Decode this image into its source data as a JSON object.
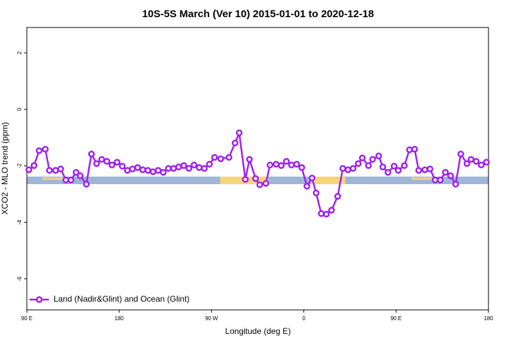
{
  "chart_data": {
    "type": "line",
    "title": "10S-5S March (Ver 10)   2015-01-01 to 2020-12-18",
    "x_label": "Longitude (deg E)",
    "y_label": "XCO2 - MLO trend (ppm)",
    "xlim": [
      90,
      540
    ],
    "ylim": [
      -7.1,
      2.9
    ],
    "xticks": [
      {
        "value": 90,
        "label": "90 E"
      },
      {
        "value": 180,
        "label": "180"
      },
      {
        "value": 270,
        "label": "90 W"
      },
      {
        "value": 360,
        "label": "0"
      },
      {
        "value": 450,
        "label": "90 E"
      },
      {
        "value": 540,
        "label": "180"
      }
    ],
    "yticks": [
      2,
      0,
      -2,
      -4,
      -6
    ],
    "legend": "bottom-left",
    "series": [
      {
        "name": "Land (Nadir&Glint) and Ocean (Glint)",
        "color": "#a020f0",
        "x": [
          92,
          97,
          102,
          108,
          112,
          118,
          123,
          128,
          133,
          138,
          142,
          148,
          153,
          158,
          163,
          168,
          173,
          178,
          183,
          188,
          193,
          198,
          203,
          208,
          213,
          218,
          223,
          228,
          233,
          238,
          243,
          248,
          253,
          258,
          263,
          268,
          273,
          279,
          287,
          293,
          297,
          303,
          307,
          313,
          317,
          323,
          327,
          333,
          338,
          343,
          348,
          353,
          358,
          363,
          368,
          372,
          377,
          382,
          387,
          393,
          398,
          403,
          408,
          413,
          417,
          423,
          427,
          433,
          437,
          442,
          448,
          452,
          458,
          463,
          468,
          472,
          478,
          483,
          488,
          493,
          498,
          503,
          508,
          513,
          519,
          523,
          528,
          533,
          538
        ],
        "values": [
          -2.14,
          -1.99,
          -1.46,
          -1.41,
          -2.16,
          -2.16,
          -2.11,
          -2.5,
          -2.5,
          -2.23,
          -2.35,
          -2.65,
          -1.58,
          -1.92,
          -1.77,
          -1.84,
          -1.97,
          -1.87,
          -2.01,
          -2.16,
          -2.11,
          -2.06,
          -2.14,
          -2.16,
          -2.21,
          -2.16,
          -2.23,
          -2.09,
          -2.09,
          -2.04,
          -1.99,
          -2.09,
          -1.97,
          -2.06,
          -2.09,
          -1.94,
          -1.7,
          -1.75,
          -1.7,
          -1.19,
          -0.83,
          -2.48,
          -1.77,
          -2.45,
          -2.67,
          -2.62,
          -1.97,
          -1.94,
          -1.99,
          -1.84,
          -1.97,
          -1.94,
          -2.06,
          -2.72,
          -2.43,
          -2.96,
          -3.69,
          -3.71,
          -3.57,
          -3.08,
          -2.09,
          -2.14,
          -2.09,
          -1.92,
          -1.72,
          -1.99,
          -1.77,
          -1.65,
          -2.04,
          -2.23,
          -2.01,
          -2.16,
          -1.99,
          -1.43,
          -1.41,
          -2.16,
          -2.14,
          -2.11,
          -2.5,
          -2.5,
          -2.23,
          -2.35,
          -2.65,
          -1.58,
          -1.92,
          -1.77,
          -1.84,
          -1.97,
          -1.87
        ]
      }
    ]
  }
}
